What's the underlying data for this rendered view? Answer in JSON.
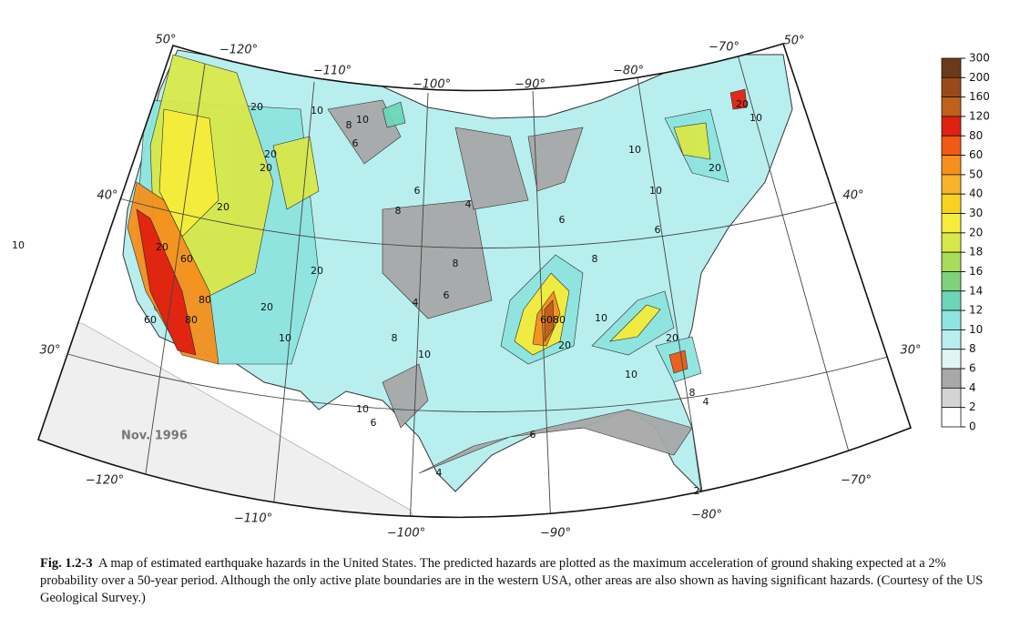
{
  "map": {
    "graticule_labels": [
      "50°",
      "−120°",
      "−110°",
      "−100°",
      "−90°",
      "−80°",
      "−70°",
      "50°",
      "40°",
      "40°",
      "30°",
      "30°",
      "−120°",
      "−110°",
      "−100°",
      "−90°",
      "−80°",
      "−70°"
    ],
    "date": "Nov. 1996",
    "contour_labels": [
      "10",
      "10",
      "8",
      "6",
      "20",
      "20",
      "20",
      "60",
      "80",
      "60",
      "80",
      "20",
      "20",
      "20",
      "10",
      "10",
      "4",
      "6",
      "8",
      "8",
      "6",
      "4",
      "10",
      "8",
      "10",
      "6",
      "6080",
      "20",
      "10",
      "20",
      "10",
      "8",
      "4",
      "6",
      "4",
      "2",
      "10",
      "20",
      "20",
      "10",
      "6",
      "8",
      "20",
      "6",
      "10"
    ],
    "legend": {
      "ticks": [
        300,
        200,
        160,
        120,
        80,
        60,
        50,
        40,
        30,
        20,
        18,
        16,
        14,
        12,
        10,
        8,
        6,
        4,
        2,
        0
      ],
      "colors": [
        "#6b3a1a",
        "#9a4a1a",
        "#c0601a",
        "#e02010",
        "#f05a14",
        "#f5901e",
        "#f7b42a",
        "#f8d21e",
        "#f6ec3a",
        "#d8e84a",
        "#a8dc5a",
        "#7ed27a",
        "#6cd6b8",
        "#8ee4e0",
        "#b8eeee",
        "#dff6f6",
        "#a8a8a8",
        "#d4d4d4",
        "#ffffff"
      ]
    }
  },
  "caption": {
    "label": "Fig. 1.2-3",
    "text": "A map of estimated earthquake hazards in the United States. The predicted hazards are plotted as the maximum acceleration of ground shaking expected at a 2% probability over a 50-year period. Although the only active plate boundaries are in the western USA, other areas are also shown as having significant hazards. (Courtesy of the US Geological Survey.)"
  }
}
